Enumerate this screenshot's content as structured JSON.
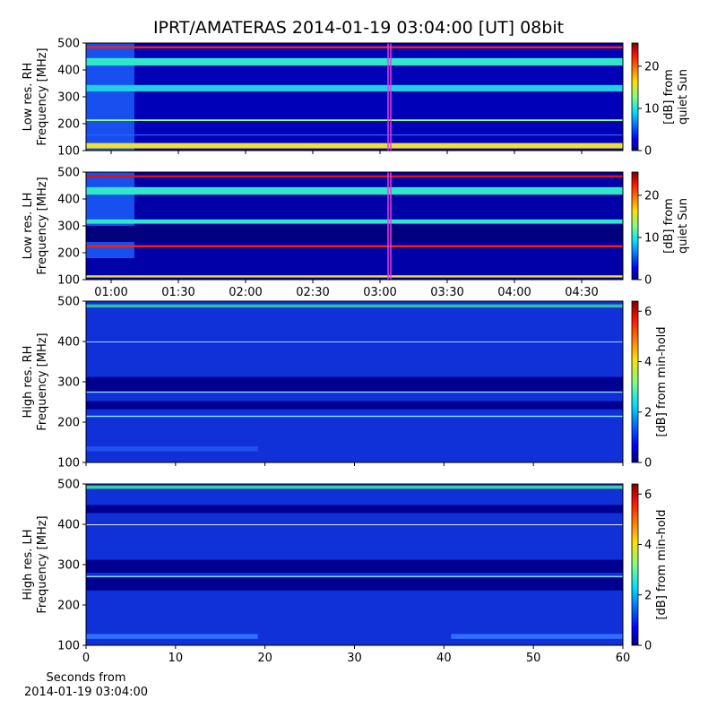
{
  "figure_title": "IPRT/AMATERAS 2014-01-19 03:04:00 [UT]   08bit",
  "chart_data": [
    {
      "type": "heatmap",
      "ylabel": [
        "Low res. RH",
        "Frequency [MHz]"
      ],
      "ylim": [
        100,
        500
      ],
      "yticks": [
        100,
        200,
        300,
        400,
        500
      ],
      "xlim": [
        48.8,
        288.4
      ],
      "xticks": [
        60,
        90,
        120,
        150,
        180,
        210,
        240,
        270
      ],
      "show_xtick_labels": false,
      "markers": [
        183.6,
        184.8
      ],
      "marker_color": "#e040e0",
      "colorbar": {
        "label": [
          "[dB] from",
          "quiet Sun"
        ],
        "lim": [
          0,
          25.5
        ],
        "ticks": [
          0,
          10,
          20
        ]
      }
    },
    {
      "type": "heatmap",
      "ylabel": [
        "Low res. LH",
        "Frequency [MHz]"
      ],
      "ylim": [
        100,
        500
      ],
      "yticks": [
        100,
        200,
        300,
        400,
        500
      ],
      "xlim": [
        48.8,
        288.4
      ],
      "xticks": [
        {
          "value": 60,
          "label": "01:00"
        },
        {
          "value": 90,
          "label": "01:30"
        },
        {
          "value": 120,
          "label": "02:00"
        },
        {
          "value": 150,
          "label": "02:30"
        },
        {
          "value": 180,
          "label": "03:00"
        },
        {
          "value": 210,
          "label": "03:30"
        },
        {
          "value": 240,
          "label": "04:00"
        },
        {
          "value": 270,
          "label": "04:30"
        }
      ],
      "show_xtick_labels": true,
      "markers": [
        183.6,
        184.8
      ],
      "marker_color": "#e040e0",
      "colorbar": {
        "label": [
          "[dB] from",
          "quiet Sun"
        ],
        "lim": [
          0,
          25.5
        ],
        "ticks": [
          0,
          10,
          20
        ]
      }
    },
    {
      "type": "heatmap",
      "ylabel": [
        "High res. RH",
        "Frequency [MHz]"
      ],
      "ylim": [
        100,
        500
      ],
      "yticks": [
        100,
        200,
        300,
        400,
        500
      ],
      "xlim": [
        0,
        60
      ],
      "xticks": [
        0,
        10,
        20,
        30,
        40,
        50,
        60
      ],
      "show_xtick_labels": false,
      "colorbar": {
        "label": [
          "[dB] from min-hold"
        ],
        "lim": [
          0,
          6.4
        ],
        "ticks": [
          0,
          2,
          4,
          6
        ]
      }
    },
    {
      "type": "heatmap",
      "ylabel": [
        "High res. LH",
        "Frequency [MHz]"
      ],
      "ylim": [
        100,
        500
      ],
      "yticks": [
        100,
        200,
        300,
        400,
        500
      ],
      "xlim": [
        0,
        60
      ],
      "xticks": [
        0,
        10,
        20,
        30,
        40,
        50,
        60
      ],
      "show_xtick_labels": true,
      "xlabel": [
        "Seconds from",
        "2014-01-19 03:04:00"
      ],
      "colorbar": {
        "label": [
          "[dB] from min-hold"
        ],
        "lim": [
          0,
          6.4
        ],
        "ticks": [
          0,
          2,
          4,
          6
        ]
      }
    }
  ]
}
